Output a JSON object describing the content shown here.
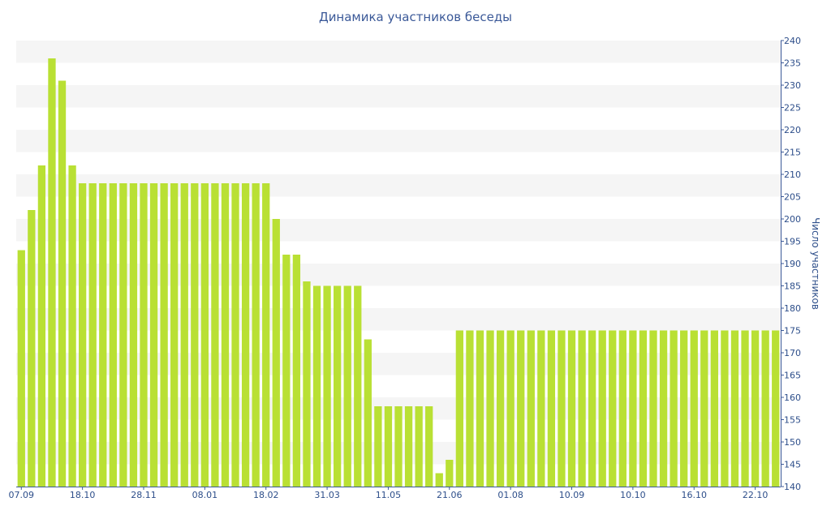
{
  "chart_data": {
    "type": "bar",
    "title": "Динамика участников беседы",
    "ylabel": "Число участников",
    "xlabel": "",
    "ylim": [
      140,
      240
    ],
    "y_ticks": [
      140,
      145,
      150,
      155,
      160,
      165,
      170,
      175,
      180,
      185,
      190,
      195,
      200,
      205,
      210,
      215,
      220,
      225,
      230,
      235,
      240
    ],
    "x_tick_labels": [
      {
        "label": "07.09",
        "index": 0
      },
      {
        "label": "18.10",
        "index": 6
      },
      {
        "label": "28.11",
        "index": 12
      },
      {
        "label": "08.01",
        "index": 18
      },
      {
        "label": "18.02",
        "index": 24
      },
      {
        "label": "31.03",
        "index": 30
      },
      {
        "label": "11.05",
        "index": 36
      },
      {
        "label": "21.06",
        "index": 42
      },
      {
        "label": "01.08",
        "index": 48
      },
      {
        "label": "10.09",
        "index": 54
      },
      {
        "label": "10.10",
        "index": 60
      },
      {
        "label": "16.10",
        "index": 66
      },
      {
        "label": "22.10",
        "index": 72
      }
    ],
    "values": [
      193,
      202,
      212,
      236,
      231,
      212,
      208,
      208,
      208,
      208,
      208,
      208,
      208,
      208,
      208,
      208,
      208,
      208,
      208,
      208,
      208,
      208,
      208,
      208,
      208,
      200,
      192,
      192,
      186,
      185,
      185,
      185,
      185,
      185,
      173,
      158,
      158,
      158,
      158,
      158,
      158,
      143,
      146,
      175,
      175,
      175,
      175,
      175,
      175,
      175,
      175,
      175,
      175,
      175,
      175,
      175,
      175,
      175,
      175,
      175,
      175,
      175,
      175,
      175,
      175,
      175,
      175,
      175,
      175,
      175,
      175,
      175,
      175,
      175,
      175
    ],
    "bar_color": "#b9e034",
    "axis_color": "#3b5998",
    "band_color": "#f5f5f5",
    "grid": "alternating horizontal bands",
    "y_axis_position": "right"
  }
}
